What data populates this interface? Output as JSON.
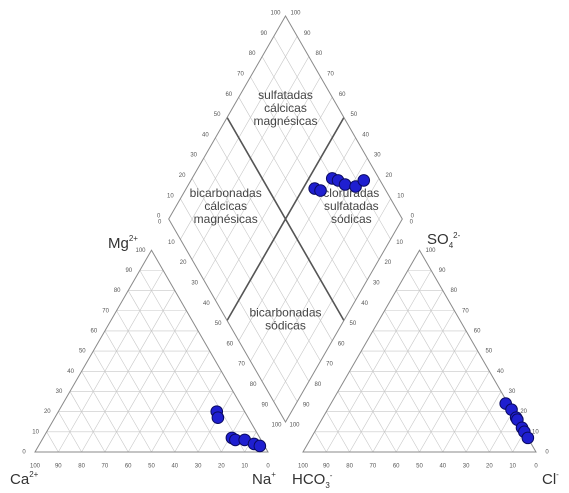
{
  "chart_data": {
    "type": "scatter",
    "diagram": "piper",
    "grid": true,
    "marker_color": "#1f1fd0",
    "marker_edge": "#0a0a60",
    "axis_ticks": [
      "100",
      "90",
      "80",
      "70",
      "60",
      "50",
      "40",
      "30",
      "20",
      "10",
      "0"
    ],
    "apex_labels": {
      "mg": {
        "base": "Mg",
        "sup": "2+"
      },
      "ca": {
        "base": "Ca",
        "sup": "2+"
      },
      "na": {
        "base": "Na",
        "sup": "+"
      },
      "hco3": {
        "base": "HCO",
        "sub": "3",
        "sup": "-"
      },
      "so4": {
        "base": "SO",
        "sub": "4",
        "sup": "2-"
      },
      "cl": {
        "base": "Cl",
        "sup": "-"
      }
    },
    "zones": [
      [
        "sulfatadas",
        "cálcicas",
        "magnésicas"
      ],
      [
        "bicarbonadas",
        "cálcicas",
        "magnésicas"
      ],
      [
        "cloruradas",
        "sulfatadas",
        "sódicas"
      ],
      [
        "bicarbonadas",
        "sódicas"
      ]
    ],
    "cation_points": [
      {
        "Ca": 12,
        "Mg": 20,
        "Na": 68
      },
      {
        "Ca": 13,
        "Mg": 17,
        "Na": 70
      },
      {
        "Ca": 12,
        "Mg": 7,
        "Na": 81
      },
      {
        "Ca": 11,
        "Mg": 6,
        "Na": 83
      },
      {
        "Ca": 7,
        "Mg": 6,
        "Na": 87
      },
      {
        "Ca": 4,
        "Mg": 4,
        "Na": 92
      },
      {
        "Ca": 2,
        "Mg": 3,
        "Na": 95
      }
    ],
    "anion_points": [
      {
        "HCO3": 1,
        "Cl": 75,
        "SO4": 24
      },
      {
        "HCO3": 0,
        "Cl": 79,
        "SO4": 21
      },
      {
        "HCO3": 0,
        "Cl": 83,
        "SO4": 17
      },
      {
        "HCO3": 0,
        "Cl": 84,
        "SO4": 16
      },
      {
        "HCO3": 0,
        "Cl": 88,
        "SO4": 12
      },
      {
        "HCO3": 0,
        "Cl": 90,
        "SO4": 10
      },
      {
        "HCO3": 0,
        "Cl": 93,
        "SO4": 7
      }
    ],
    "diamond_points": [
      {
        "Na": 70,
        "SO4": 45
      },
      {
        "Na": 72,
        "SO4": 42
      },
      {
        "Na": 80,
        "SO4": 40
      },
      {
        "Na": 82,
        "SO4": 37
      },
      {
        "Na": 84,
        "SO4": 33
      },
      {
        "Na": 88,
        "SO4": 28
      },
      {
        "Na": 93,
        "SO4": 26
      }
    ]
  }
}
